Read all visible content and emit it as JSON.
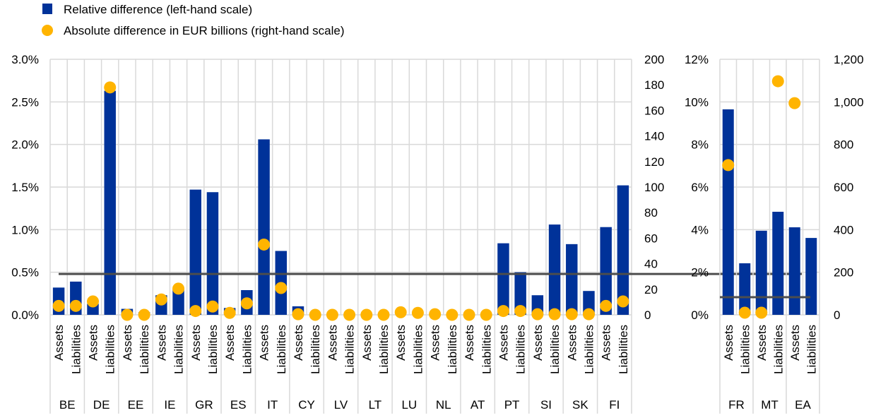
{
  "colors": {
    "bars": "#003299",
    "dots": "#FFB400",
    "grid": "#D9D9D9",
    "reference_line": "#4D4D4D"
  },
  "legend": {
    "bars_label": "Relative difference (left-hand scale)",
    "dots_label": "Absolute difference in EUR billions (right-hand scale)",
    "position": "top-left"
  },
  "chart_data": [
    {
      "type": "bar",
      "panel": "left",
      "grid": true,
      "ylim_left": [
        0,
        3
      ],
      "ylim_right": [
        0,
        200
      ],
      "left_ticks": [
        "0.0%",
        "0.5%",
        "1.0%",
        "1.5%",
        "2.0%",
        "2.5%",
        "3.0%"
      ],
      "right_ticks": [
        "0",
        "20",
        "40",
        "60",
        "80",
        "100",
        "120",
        "140",
        "160",
        "180",
        "200"
      ],
      "sub_labels": [
        "Assets",
        "Liabilities"
      ],
      "countries": [
        "BE",
        "DE",
        "EE",
        "IE",
        "GR",
        "ES",
        "IT",
        "CY",
        "LV",
        "LT",
        "LU",
        "NL",
        "AT",
        "PT",
        "SI",
        "SK",
        "FI"
      ],
      "series": [
        {
          "name": "Relative difference (left-hand scale)",
          "type": "bar",
          "axis": "left",
          "values": [
            0.32,
            0.39,
            0.13,
            2.63,
            0.07,
            0.03,
            0.23,
            0.3,
            1.47,
            1.44,
            0.08,
            0.29,
            2.06,
            0.75,
            0.1,
            0.0,
            0.0,
            0.0,
            0.0,
            0.0,
            0.0,
            0.0,
            0.0,
            0.0,
            0.0,
            0.0,
            0.84,
            0.5,
            0.23,
            1.06,
            0.83,
            0.28,
            1.03,
            1.52
          ]
        },
        {
          "name": "Absolute difference in EUR billions (right-hand scale)",
          "type": "scatter",
          "axis": "right",
          "values": [
            7,
            7,
            10.5,
            178,
            0,
            0,
            12,
            20.5,
            3,
            6.5,
            1.5,
            9,
            55,
            21,
            0.5,
            0,
            0,
            0,
            0,
            0,
            2,
            1.5,
            0.5,
            0,
            0,
            0,
            3,
            3,
            0.5,
            0.5,
            0.5,
            0.5,
            7,
            10.5
          ]
        }
      ],
      "reference_line": 0.48
    },
    {
      "type": "bar",
      "panel": "right",
      "grid": true,
      "ylim_left": [
        0,
        12
      ],
      "ylim_right": [
        0,
        1200
      ],
      "left_ticks": [
        "0%",
        "2%",
        "4%",
        "6%",
        "8%",
        "10%",
        "12%"
      ],
      "right_ticks": [
        "0",
        "200",
        "400",
        "600",
        "800",
        "1,000",
        "1,200"
      ],
      "sub_labels": [
        "Assets",
        "Liabilities"
      ],
      "countries": [
        "FR",
        "MT",
        "EA"
      ],
      "series": [
        {
          "name": "Relative difference (left-hand scale)",
          "type": "bar",
          "axis": "left",
          "values": [
            9.65,
            2.42,
            3.95,
            4.84,
            4.11,
            3.61
          ]
        },
        {
          "name": "Absolute difference in EUR billions (right-hand scale)",
          "type": "scatter",
          "axis": "right",
          "values": [
            703,
            10,
            10,
            1097,
            994,
            null
          ]
        }
      ],
      "reference_line": 0.83
    }
  ]
}
